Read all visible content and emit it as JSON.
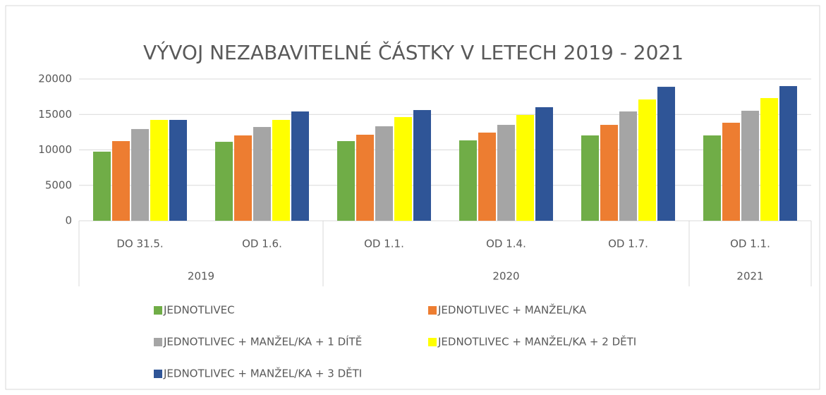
{
  "chart_data": {
    "type": "bar",
    "title": "VÝVOJ NEZABAVITELNÉ ČÁSTKY V LETECH 2019 - 2021",
    "categories": [
      "DO 31.5.",
      "OD 1.6.",
      "OD 1.1.",
      "OD 1.4.",
      "OD 1.7.",
      "OD 1.1."
    ],
    "category_groups": [
      "2019",
      "2019",
      "2020",
      "2020",
      "2020",
      "2021"
    ],
    "series": [
      {
        "name": "JEDNOTLIVEC",
        "color": "#70ad47",
        "values": [
          9750,
          11140,
          11240,
          11340,
          12040,
          12040
        ]
      },
      {
        "name": "JEDNOTLIVEC + MANŽEL/KA",
        "color": "#ed7d31",
        "values": [
          11240,
          12040,
          12140,
          12440,
          13530,
          13830
        ]
      },
      {
        "name": "JEDNOTLIVEC + MANŽEL/KA + 1 DÍTĚ",
        "color": "#a5a5a5",
        "values": [
          12940,
          13230,
          13330,
          13530,
          15420,
          15520
        ]
      },
      {
        "name": "JEDNOTLIVEC + MANŽEL/KA + 2 DĚTI",
        "color": "#ffff00",
        "values": [
          14230,
          14230,
          14630,
          14930,
          17110,
          17310
        ]
      },
      {
        "name": "JEDNOTLIVEC + MANŽEL/KA + 3 DĚTI",
        "color": "#2f5597",
        "values": [
          14230,
          15420,
          15620,
          16020,
          18900,
          19000
        ]
      }
    ],
    "ylim": [
      0,
      20000
    ],
    "yticks": [
      0,
      5000,
      10000,
      15000,
      20000
    ],
    "grid": true,
    "legend": "bottom"
  }
}
